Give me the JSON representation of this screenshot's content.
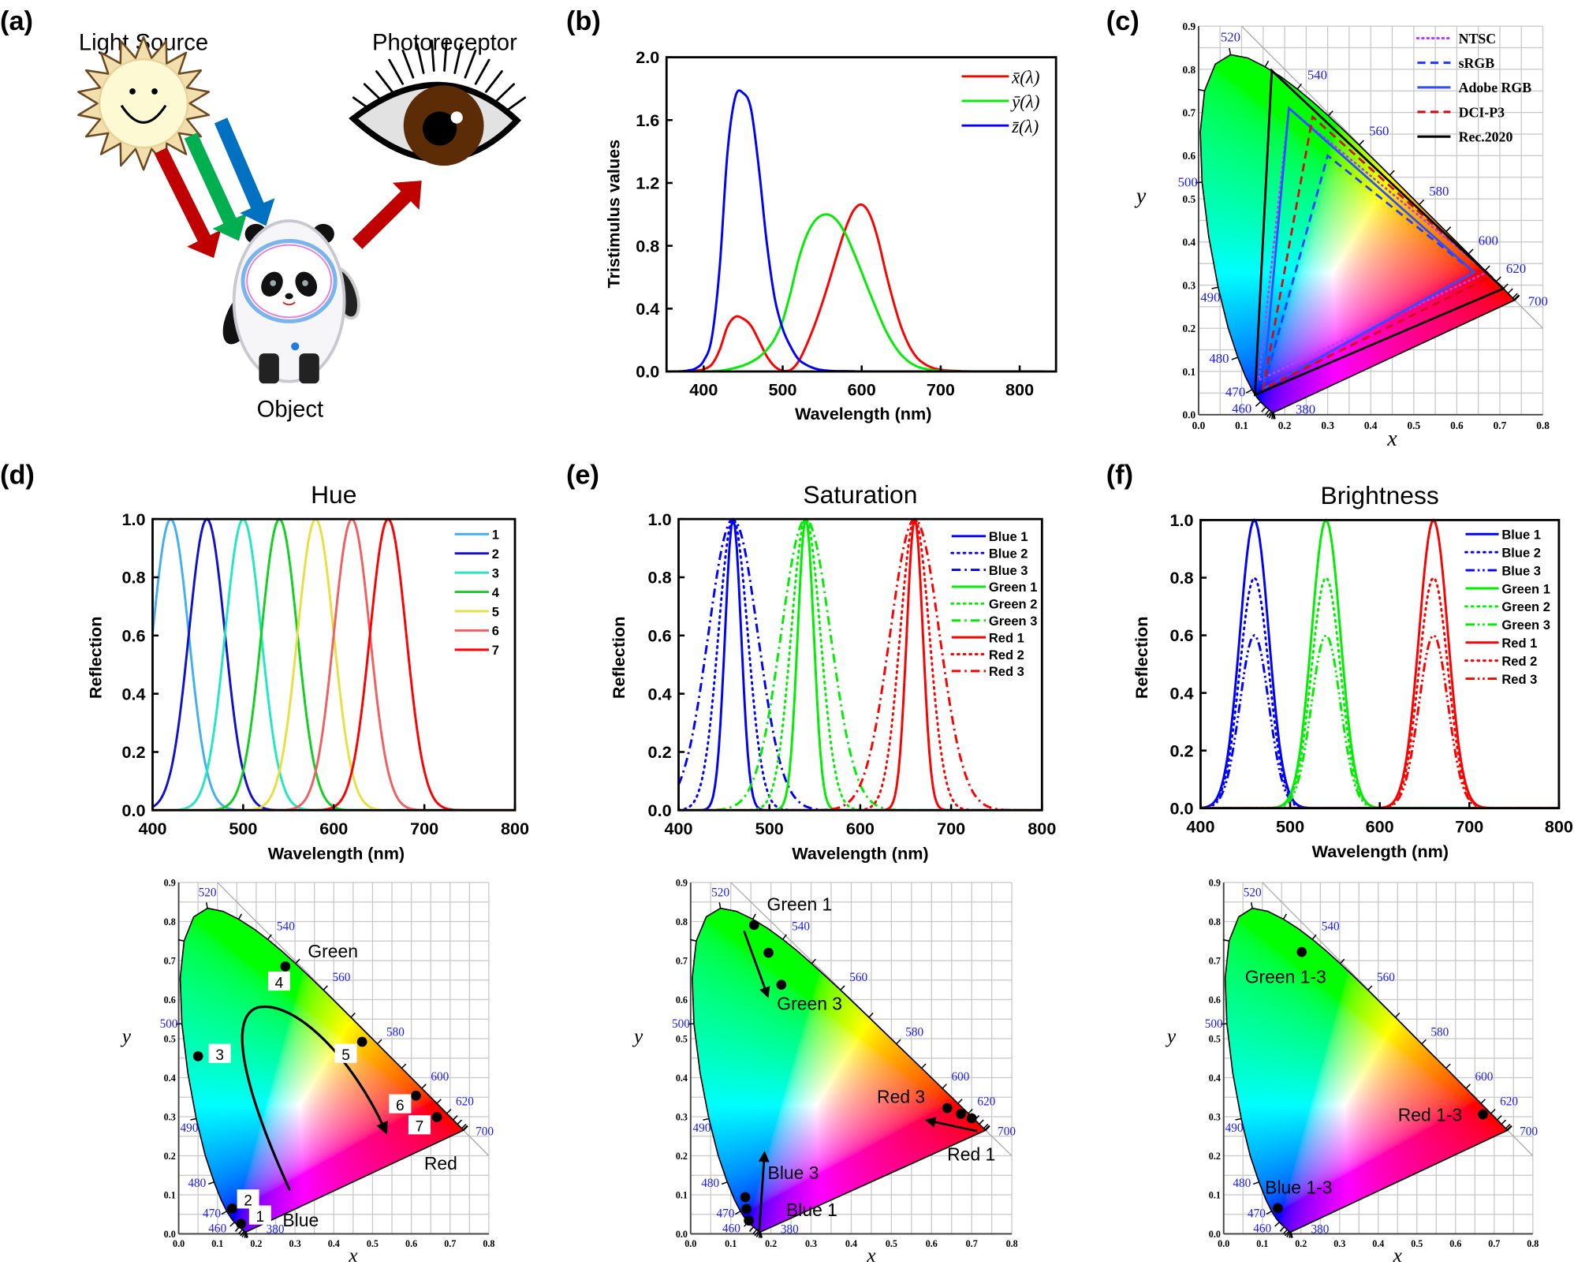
{
  "panel_labels": {
    "a": "(a)",
    "b": "(b)",
    "c": "(c)",
    "d": "(d)",
    "e": "(e)",
    "f": "(f)"
  },
  "panel_a": {
    "light_source": "Light Source",
    "photoreceptor": "Photoreceptor",
    "object": "Object",
    "arrow_colors": {
      "red": "#c00000",
      "green": "#00b050",
      "blue": "#0070c0"
    }
  },
  "chart_data": [
    {
      "panel": "b",
      "type": "line",
      "xlabel": "Wavelength (nm)",
      "ylabel": "Tristimulus values",
      "xlim": [
        353,
        846
      ],
      "ylim": [
        0,
        2.0
      ],
      "xticks": [
        400,
        500,
        600,
        700,
        800
      ],
      "xtick_labels": [
        "400",
        "500",
        "600",
        "700",
        "800"
      ],
      "yticks": [
        0,
        0.4,
        0.8,
        1.2,
        1.6,
        2.0
      ],
      "ytick_labels": [
        "0.0",
        "0.4",
        "0.8",
        "1.2",
        "1.6",
        "2.0"
      ],
      "legend": "top-right",
      "grid": false,
      "x": [
        360,
        370,
        380,
        390,
        400,
        410,
        420,
        430,
        440,
        450,
        460,
        470,
        480,
        490,
        500,
        510,
        520,
        530,
        540,
        550,
        560,
        570,
        580,
        590,
        600,
        610,
        620,
        630,
        640,
        650,
        660,
        670,
        680,
        690,
        700,
        710,
        720,
        730,
        740,
        750,
        760,
        770,
        780,
        790,
        800,
        810,
        820,
        830
      ],
      "series": [
        {
          "name": "x̄(λ)",
          "color": "#ff0000",
          "style": "solid",
          "values": [
            0,
            0.0002,
            0.0014,
            0.0042,
            0.0143,
            0.0435,
            0.1344,
            0.2839,
            0.3483,
            0.3362,
            0.2908,
            0.1954,
            0.0956,
            0.032,
            0.0049,
            0.0093,
            0.0633,
            0.1655,
            0.2904,
            0.4334,
            0.5945,
            0.7621,
            0.9163,
            1.0263,
            1.0622,
            1.0026,
            0.8544,
            0.6424,
            0.4479,
            0.2835,
            0.1649,
            0.0874,
            0.0468,
            0.0227,
            0.0114,
            0.0058,
            0.0029,
            0.0014,
            0.0007,
            0.0003,
            0.0002,
            0.0001,
            0,
            0,
            0,
            0,
            0,
            0
          ]
        },
        {
          "name": "ȳ(λ)",
          "color": "#00ee00",
          "style": "solid",
          "values": [
            0,
            0,
            0,
            0.0001,
            0.0004,
            0.0012,
            0.004,
            0.0116,
            0.023,
            0.038,
            0.06,
            0.091,
            0.139,
            0.208,
            0.323,
            0.503,
            0.71,
            0.862,
            0.954,
            0.995,
            0.995,
            0.952,
            0.87,
            0.757,
            0.631,
            0.503,
            0.381,
            0.265,
            0.175,
            0.107,
            0.061,
            0.032,
            0.017,
            0.0082,
            0.0041,
            0.0021,
            0.001,
            0.0005,
            0.0002,
            0.0001,
            0.0001,
            0,
            0,
            0,
            0,
            0,
            0,
            0
          ]
        },
        {
          "name": "z̄(λ)",
          "color": "#0000ff",
          "style": "solid",
          "values": [
            0,
            0.001,
            0.0065,
            0.0201,
            0.0679,
            0.2074,
            0.6456,
            1.3856,
            1.7471,
            1.7721,
            1.6692,
            1.2876,
            0.813,
            0.4652,
            0.272,
            0.1582,
            0.0782,
            0.0422,
            0.0203,
            0.0087,
            0.0039,
            0.0021,
            0.0017,
            0.0011,
            0.0008,
            0.0003,
            0.0002,
            0,
            0,
            0,
            0,
            0,
            0,
            0,
            0,
            0,
            0,
            0,
            0,
            0,
            0,
            0,
            0,
            0,
            0,
            0,
            0,
            0
          ]
        }
      ]
    },
    {
      "panel": "c",
      "type": "scatter",
      "xlabel": "x",
      "ylabel": "y",
      "xlim": [
        0,
        0.8
      ],
      "ylim": [
        0,
        0.9
      ],
      "grid": true,
      "legend": "top-right",
      "xtick_labels": [
        "0.0",
        "0.1",
        "0.2",
        "0.3",
        "0.4",
        "0.5",
        "0.6",
        "0.7",
        "0.8"
      ],
      "ytick_labels": [
        "0.0",
        "0.1",
        "0.2",
        "0.3",
        "0.4",
        "0.5",
        "0.6",
        "0.7",
        "0.8",
        "0.9"
      ],
      "wavelength_labels": [
        "380",
        "460",
        "470",
        "480",
        "490",
        "500",
        "520",
        "540",
        "560",
        "580",
        "600",
        "620",
        "700"
      ],
      "gamuts": [
        {
          "name": "NTSC",
          "color": "#b040ff",
          "style": "dot",
          "primaries": [
            [
              0.67,
              0.33
            ],
            [
              0.21,
              0.71
            ],
            [
              0.14,
              0.08
            ]
          ]
        },
        {
          "name": "sRGB",
          "color": "#2040ff",
          "style": "dash",
          "primaries": [
            [
              0.64,
              0.33
            ],
            [
              0.3,
              0.6
            ],
            [
              0.15,
              0.06
            ]
          ]
        },
        {
          "name": "Adobe RGB",
          "color": "#3050ff",
          "style": "solid",
          "primaries": [
            [
              0.64,
              0.33
            ],
            [
              0.21,
              0.71
            ],
            [
              0.15,
              0.06
            ]
          ]
        },
        {
          "name": "DCI-P3",
          "color": "#d01010",
          "style": "dash",
          "primaries": [
            [
              0.68,
              0.32
            ],
            [
              0.265,
              0.69
            ],
            [
              0.15,
              0.06
            ]
          ]
        },
        {
          "name": "Rec.2020",
          "color": "#000000",
          "style": "solid",
          "primaries": [
            [
              0.708,
              0.292
            ],
            [
              0.17,
              0.797
            ],
            [
              0.131,
              0.046
            ]
          ]
        }
      ]
    },
    {
      "panel": "d",
      "type": "line",
      "title": "Hue",
      "xlabel": "Wavelength (nm)",
      "ylabel": "Reflection",
      "xlim": [
        400,
        800
      ],
      "ylim": [
        0,
        1.0
      ],
      "xticks": [
        400,
        500,
        600,
        700,
        800
      ],
      "xtick_labels": [
        "400",
        "500",
        "600",
        "700",
        "800"
      ],
      "yticks": [
        0,
        0.2,
        0.4,
        0.6,
        0.8,
        1.0
      ],
      "ytick_labels": [
        "0.0",
        "0.2",
        "0.4",
        "0.6",
        "0.8",
        "1.0"
      ],
      "legend": "top-right",
      "series": [
        {
          "name": "1",
          "color": "#40b0f0",
          "style": "solid",
          "peak_nm": 420,
          "peak": 1.0,
          "fwhm_nm": 47
        },
        {
          "name": "2",
          "color": "#1010d0",
          "style": "solid",
          "peak_nm": 460,
          "peak": 1.0,
          "fwhm_nm": 47
        },
        {
          "name": "3",
          "color": "#20e8c0",
          "style": "solid",
          "peak_nm": 500,
          "peak": 1.0,
          "fwhm_nm": 47
        },
        {
          "name": "4",
          "color": "#10d020",
          "style": "solid",
          "peak_nm": 540,
          "peak": 1.0,
          "fwhm_nm": 47
        },
        {
          "name": "5",
          "color": "#e8e040",
          "style": "solid",
          "peak_nm": 580,
          "peak": 1.0,
          "fwhm_nm": 47
        },
        {
          "name": "6",
          "color": "#f06060",
          "style": "solid",
          "peak_nm": 620,
          "peak": 1.0,
          "fwhm_nm": 47
        },
        {
          "name": "7",
          "color": "#ff0000",
          "style": "solid",
          "peak_nm": 660,
          "peak": 1.0,
          "fwhm_nm": 47
        }
      ]
    },
    {
      "panel": "e",
      "type": "line",
      "title": "Saturation",
      "xlabel": "Wavelength (nm)",
      "ylabel": "Reflection",
      "xlim": [
        400,
        800
      ],
      "ylim": [
        0,
        1.0
      ],
      "xticks": [
        400,
        500,
        600,
        700,
        800
      ],
      "xtick_labels": [
        "400",
        "500",
        "600",
        "700",
        "800"
      ],
      "yticks": [
        0,
        0.2,
        0.4,
        0.6,
        0.8,
        1.0
      ],
      "ytick_labels": [
        "0.0",
        "0.2",
        "0.4",
        "0.6",
        "0.8",
        "1.0"
      ],
      "legend": "top-right",
      "series": [
        {
          "name": "Blue 1",
          "color": "#0000ff",
          "style": "solid",
          "peak_nm": 460,
          "peak": 1.0,
          "fwhm_nm": 21
        },
        {
          "name": "Blue 2",
          "color": "#0000ff",
          "style": "dot",
          "peak_nm": 460,
          "peak": 1.0,
          "fwhm_nm": 38
        },
        {
          "name": "Blue 3",
          "color": "#0000ff",
          "style": "dashdot",
          "peak_nm": 460,
          "peak": 1.0,
          "fwhm_nm": 64
        },
        {
          "name": "Green 1",
          "color": "#00ee00",
          "style": "solid",
          "peak_nm": 540,
          "peak": 1.0,
          "fwhm_nm": 21
        },
        {
          "name": "Green 2",
          "color": "#00ee00",
          "style": "dot",
          "peak_nm": 540,
          "peak": 1.0,
          "fwhm_nm": 38
        },
        {
          "name": "Green 3",
          "color": "#00ee00",
          "style": "dashdot",
          "peak_nm": 540,
          "peak": 1.0,
          "fwhm_nm": 64
        },
        {
          "name": "Red 1",
          "color": "#ff0000",
          "style": "solid",
          "peak_nm": 660,
          "peak": 1.0,
          "fwhm_nm": 21
        },
        {
          "name": "Red 2",
          "color": "#ff0000",
          "style": "dot",
          "peak_nm": 660,
          "peak": 1.0,
          "fwhm_nm": 38
        },
        {
          "name": "Red 3",
          "color": "#ff0000",
          "style": "dashdot",
          "peak_nm": 660,
          "peak": 1.0,
          "fwhm_nm": 64
        }
      ]
    },
    {
      "panel": "f",
      "type": "line",
      "title": "Brightness",
      "xlabel": "Wavelength (nm)",
      "ylabel": "Reflection",
      "xlim": [
        400,
        800
      ],
      "ylim": [
        0,
        1.0
      ],
      "xticks": [
        400,
        500,
        600,
        700,
        800
      ],
      "xtick_labels": [
        "400",
        "500",
        "600",
        "700",
        "800"
      ],
      "yticks": [
        0,
        0.2,
        0.4,
        0.6,
        0.8,
        1.0
      ],
      "ytick_labels": [
        "0.0",
        "0.2",
        "0.4",
        "0.6",
        "0.8",
        "1.0"
      ],
      "legend": "top-right",
      "series": [
        {
          "name": "Blue 1",
          "color": "#0000ff",
          "style": "solid",
          "peak_nm": 460,
          "peak": 1.0,
          "fwhm_nm": 38
        },
        {
          "name": "Blue 2",
          "color": "#0000ff",
          "style": "dot",
          "peak_nm": 460,
          "peak": 0.8,
          "fwhm_nm": 38
        },
        {
          "name": "Blue 3",
          "color": "#0000ff",
          "style": "dashdotdot",
          "peak_nm": 460,
          "peak": 0.6,
          "fwhm_nm": 38
        },
        {
          "name": "Green 1",
          "color": "#00ee00",
          "style": "solid",
          "peak_nm": 540,
          "peak": 1.0,
          "fwhm_nm": 38
        },
        {
          "name": "Green 2",
          "color": "#00ee00",
          "style": "dot",
          "peak_nm": 540,
          "peak": 0.8,
          "fwhm_nm": 38
        },
        {
          "name": "Green 3",
          "color": "#00ee00",
          "style": "dashdotdot",
          "peak_nm": 540,
          "peak": 0.6,
          "fwhm_nm": 38
        },
        {
          "name": "Red 1",
          "color": "#ff0000",
          "style": "solid",
          "peak_nm": 660,
          "peak": 1.0,
          "fwhm_nm": 38
        },
        {
          "name": "Red 2",
          "color": "#ff0000",
          "style": "dot",
          "peak_nm": 660,
          "peak": 0.8,
          "fwhm_nm": 38
        },
        {
          "name": "Red 3",
          "color": "#ff0000",
          "style": "dashdotdot",
          "peak_nm": 660,
          "peak": 0.6,
          "fwhm_nm": 38
        }
      ]
    },
    {
      "panel": "d-chromaticity",
      "type": "scatter",
      "xlabel": "x",
      "ylabel": "y",
      "xlim": [
        0,
        0.8
      ],
      "ylim": [
        0,
        0.9
      ],
      "grid": true,
      "xtick_labels": [
        "0.0",
        "0.1",
        "0.2",
        "0.3",
        "0.4",
        "0.5",
        "0.6",
        "0.7",
        "0.8"
      ],
      "ytick_labels": [
        "0.0",
        "0.1",
        "0.2",
        "0.3",
        "0.4",
        "0.5",
        "0.6",
        "0.7",
        "0.8",
        "0.9"
      ],
      "wavelength_labels": [
        "380",
        "460",
        "470",
        "480",
        "490",
        "500",
        "520",
        "540",
        "560",
        "580",
        "600",
        "620",
        "700"
      ],
      "points": [
        {
          "label": "1",
          "x": 0.161,
          "y": 0.026
        },
        {
          "label": "2",
          "x": 0.138,
          "y": 0.065
        },
        {
          "label": "3",
          "x": 0.05,
          "y": 0.455
        },
        {
          "label": "4",
          "x": 0.275,
          "y": 0.685
        },
        {
          "label": "5",
          "x": 0.473,
          "y": 0.492
        },
        {
          "label": "6",
          "x": 0.612,
          "y": 0.354
        },
        {
          "label": "7",
          "x": 0.666,
          "y": 0.299
        }
      ],
      "annotations": [
        "Green",
        "Red",
        "Blue"
      ]
    },
    {
      "panel": "e-chromaticity",
      "type": "scatter",
      "xlabel": "x",
      "ylabel": "y",
      "xlim": [
        0,
        0.8
      ],
      "ylim": [
        0,
        0.9
      ],
      "grid": true,
      "xtick_labels": [
        "0.0",
        "0.1",
        "0.2",
        "0.3",
        "0.4",
        "0.5",
        "0.6",
        "0.7",
        "0.8"
      ],
      "ytick_labels": [
        "0.0",
        "0.1",
        "0.2",
        "0.3",
        "0.4",
        "0.5",
        "0.6",
        "0.7",
        "0.8",
        "0.9"
      ],
      "wavelength_labels": [
        "380",
        "460",
        "470",
        "480",
        "490",
        "500",
        "520",
        "540",
        "560",
        "580",
        "600",
        "620",
        "700"
      ],
      "points": [
        {
          "label": "Green 1",
          "x": 0.158,
          "y": 0.791
        },
        {
          "label": "Green 2",
          "x": 0.194,
          "y": 0.72
        },
        {
          "label": "Green 3",
          "x": 0.226,
          "y": 0.638
        },
        {
          "label": "Red 1",
          "x": 0.7,
          "y": 0.296
        },
        {
          "label": "Red 2",
          "x": 0.673,
          "y": 0.307
        },
        {
          "label": "Red 3",
          "x": 0.639,
          "y": 0.322
        },
        {
          "label": "Blue 1",
          "x": 0.145,
          "y": 0.034
        },
        {
          "label": "Blue 2",
          "x": 0.139,
          "y": 0.064
        },
        {
          "label": "Blue 3",
          "x": 0.136,
          "y": 0.094
        }
      ],
      "annotations": [
        "Green 1",
        "Green 3",
        "Red 3",
        "Red 1",
        "Blue 3",
        "Blue 1"
      ]
    },
    {
      "panel": "f-chromaticity",
      "type": "scatter",
      "xlabel": "x",
      "ylabel": "y",
      "xlim": [
        0,
        0.8
      ],
      "ylim": [
        0,
        0.9
      ],
      "grid": true,
      "xtick_labels": [
        "0.0",
        "0.1",
        "0.2",
        "0.3",
        "0.4",
        "0.5",
        "0.6",
        "0.7",
        "0.8"
      ],
      "ytick_labels": [
        "0.0",
        "0.1",
        "0.2",
        "0.3",
        "0.4",
        "0.5",
        "0.6",
        "0.7",
        "0.8",
        "0.9"
      ],
      "wavelength_labels": [
        "380",
        "460",
        "470",
        "480",
        "490",
        "500",
        "520",
        "540",
        "560",
        "580",
        "600",
        "620",
        "700"
      ],
      "points": [
        {
          "label": "Green 1-3",
          "x": 0.202,
          "y": 0.722
        },
        {
          "label": "Red 1-3",
          "x": 0.671,
          "y": 0.306
        },
        {
          "label": "Blue 1-3",
          "x": 0.14,
          "y": 0.066
        }
      ],
      "annotations": [
        "Green 1-3",
        "Red 1-3",
        "Blue 1-3"
      ]
    }
  ]
}
